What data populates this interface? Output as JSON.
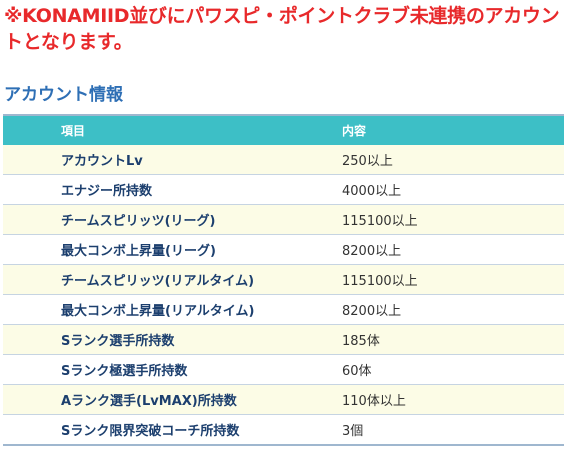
{
  "notice": {
    "text": "※KONAMIID並びにパワスピ・ポイントクラブ未連携のアカウントとなります。"
  },
  "section": {
    "title": "アカウント情報"
  },
  "table": {
    "headers": {
      "item": "項目",
      "content": "内容"
    },
    "rows": [
      {
        "item": "アカウントLv",
        "content": "250以上"
      },
      {
        "item": "エナジー所持数",
        "content": "4000以上"
      },
      {
        "item": "チームスピリッツ(リーグ)",
        "content": "115100以上"
      },
      {
        "item": "最大コンボ上昇量(リーグ)",
        "content": "8200以上"
      },
      {
        "item": "チームスピリッツ(リアルタイム)",
        "content": "115100以上"
      },
      {
        "item": "最大コンボ上昇量(リアルタイム)",
        "content": "8200以上"
      },
      {
        "item": "Sランク選手所持数",
        "content": "185体"
      },
      {
        "item": "Sランク極選手所持数",
        "content": "60体"
      },
      {
        "item": "Aランク選手(LvMAX)所持数",
        "content": "110体以上"
      },
      {
        "item": "Sランク限界突破コーチ所持数",
        "content": "3個"
      }
    ]
  },
  "colors": {
    "notice": "#e8292b",
    "section_title": "#2e6fb5",
    "header_bg": "#3dbfc6",
    "row_odd_bg": "#fcfce6",
    "row_even_bg": "#ffffff",
    "item_text": "#1c3f6e"
  }
}
